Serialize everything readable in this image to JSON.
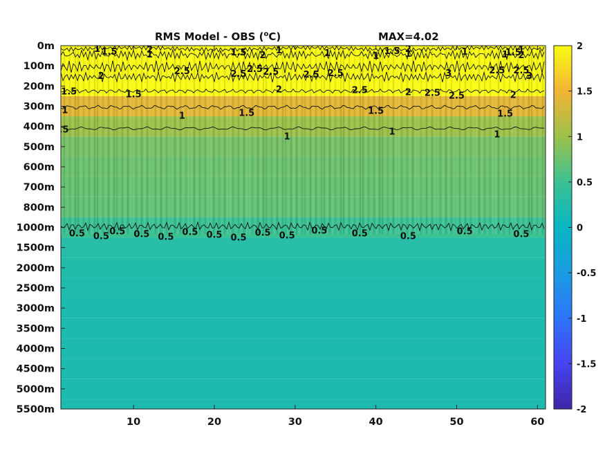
{
  "chart_data": {
    "type": "heatmap",
    "title_left": "RMS Model - OBS (",
    "title_sup": "o",
    "title_right": "C)",
    "max_label": "MAX=4.02",
    "xlim": [
      1,
      61
    ],
    "x_ticks": [
      10,
      20,
      30,
      40,
      50,
      60
    ],
    "y_ticks": [
      "0m",
      "100m",
      "200m",
      "300m",
      "400m",
      "500m",
      "600m",
      "700m",
      "800m",
      "1000m",
      "1500m",
      "2000m",
      "2500m",
      "3000m",
      "3500m",
      "4000m",
      "4500m",
      "5000m",
      "5500m"
    ],
    "colorbar": {
      "range": [
        -2,
        2
      ],
      "ticks": [
        2,
        1.5,
        1,
        0.5,
        0,
        -0.5,
        -1,
        -1.5,
        -2
      ],
      "tick_labels": [
        "2",
        "1.5",
        "1",
        "0.5",
        "0",
        "-0.5",
        "-1",
        "-1.5",
        "-2"
      ]
    },
    "depth_profile": {
      "levels": [
        "0m",
        "100m",
        "200m",
        "300m",
        "400m",
        "500m",
        "600m",
        "700m",
        "800m",
        "1000m",
        "1500m",
        "2000m",
        "2500m",
        "3000m",
        "3500m",
        "4000m",
        "4500m",
        "5000m",
        "5500m"
      ],
      "rms_values": [
        2.0,
        2.3,
        2.0,
        1.4,
        1.0,
        0.8,
        0.75,
        0.72,
        0.7,
        0.5,
        0.3,
        0.25,
        0.22,
        0.2,
        0.2,
        0.2,
        0.2,
        0.2,
        0.2
      ]
    },
    "contour_levels": [
      0.5,
      1,
      1.5,
      2,
      2.5,
      3
    ],
    "contour_labels": [
      {
        "text": "1",
        "x": 5.5,
        "level": "0m"
      },
      {
        "text": "1.5",
        "x": 7,
        "level": "0m"
      },
      {
        "text": "1",
        "x": 12,
        "level": "0m"
      },
      {
        "text": "2",
        "x": 12,
        "level": "0m"
      },
      {
        "text": "1.5",
        "x": 23,
        "level": "0m"
      },
      {
        "text": "2",
        "x": 26,
        "level": "0m"
      },
      {
        "text": "1",
        "x": 28,
        "level": "0m"
      },
      {
        "text": "1",
        "x": 34,
        "level": "0m"
      },
      {
        "text": "1",
        "x": 40,
        "level": "0m"
      },
      {
        "text": "1.5",
        "x": 42,
        "level": "0m"
      },
      {
        "text": "1",
        "x": 44,
        "level": "0m"
      },
      {
        "text": "2",
        "x": 44,
        "level": "0m"
      },
      {
        "text": "1",
        "x": 51,
        "level": "0m"
      },
      {
        "text": "1",
        "x": 56,
        "level": "0m"
      },
      {
        "text": "1",
        "x": 58,
        "level": "0m"
      },
      {
        "text": "1.5",
        "x": 57,
        "level": "0m"
      },
      {
        "text": "2",
        "x": 58,
        "level": "0m"
      },
      {
        "text": "2.5",
        "x": 58,
        "level": "100m"
      },
      {
        "text": "2.5",
        "x": 35,
        "level": "100m"
      },
      {
        "text": "2",
        "x": 6,
        "level": "100m"
      },
      {
        "text": "2.5",
        "x": 16,
        "level": "100m"
      },
      {
        "text": "2.5",
        "x": 23,
        "level": "100m"
      },
      {
        "text": "2.5",
        "x": 25,
        "level": "100m"
      },
      {
        "text": "2.5",
        "x": 27,
        "level": "100m"
      },
      {
        "text": "2.5",
        "x": 32,
        "level": "100m"
      },
      {
        "text": "2.5",
        "x": 38,
        "level": "200m"
      },
      {
        "text": "2.5",
        "x": 47,
        "level": "200m"
      },
      {
        "text": "2.5",
        "x": 50,
        "level": "200m"
      },
      {
        "text": "2.5",
        "x": 55,
        "level": "100m"
      },
      {
        "text": "3",
        "x": 49,
        "level": "100m"
      },
      {
        "text": "3",
        "x": 59,
        "level": "100m"
      },
      {
        "text": "1.5",
        "x": 2,
        "level": "200m"
      },
      {
        "text": "1.5",
        "x": 10,
        "level": "200m"
      },
      {
        "text": "2",
        "x": 28,
        "level": "200m"
      },
      {
        "text": "2",
        "x": 44,
        "level": "200m"
      },
      {
        "text": "2",
        "x": 57,
        "level": "200m"
      },
      {
        "text": "1",
        "x": 1.5,
        "level": "300m"
      },
      {
        "text": "1.5",
        "x": 24,
        "level": "300m"
      },
      {
        "text": "1",
        "x": 16,
        "level": "300m"
      },
      {
        "text": "1.5",
        "x": 40,
        "level": "300m"
      },
      {
        "text": "1.5",
        "x": 56,
        "level": "300m"
      },
      {
        "text": "1",
        "x": 29,
        "level": "400m"
      },
      {
        "text": "1",
        "x": 42,
        "level": "400m"
      },
      {
        "text": "1",
        "x": 55,
        "level": "400m"
      },
      {
        "text": "0.5",
        "x": 1,
        "level": "400m"
      },
      {
        "text": "0.5",
        "x": 3,
        "level": "1000m"
      },
      {
        "text": "0.5",
        "x": 6,
        "level": "1000m"
      },
      {
        "text": "0.5",
        "x": 8,
        "level": "1000m"
      },
      {
        "text": "0.5",
        "x": 11,
        "level": "1000m"
      },
      {
        "text": "0.5",
        "x": 14,
        "level": "1000m"
      },
      {
        "text": "0.5",
        "x": 17,
        "level": "1000m"
      },
      {
        "text": "0.5",
        "x": 20,
        "level": "1000m"
      },
      {
        "text": "0.5",
        "x": 23,
        "level": "1000m"
      },
      {
        "text": "0.5",
        "x": 26,
        "level": "1000m"
      },
      {
        "text": "0.5",
        "x": 29,
        "level": "1000m"
      },
      {
        "text": "0.5",
        "x": 33,
        "level": "1000m"
      },
      {
        "text": "0.5",
        "x": 38,
        "level": "1000m"
      },
      {
        "text": "0.5",
        "x": 44,
        "level": "1000m"
      },
      {
        "text": "0.5",
        "x": 51,
        "level": "1000m"
      },
      {
        "text": "0.5",
        "x": 58,
        "level": "1000m"
      }
    ]
  }
}
